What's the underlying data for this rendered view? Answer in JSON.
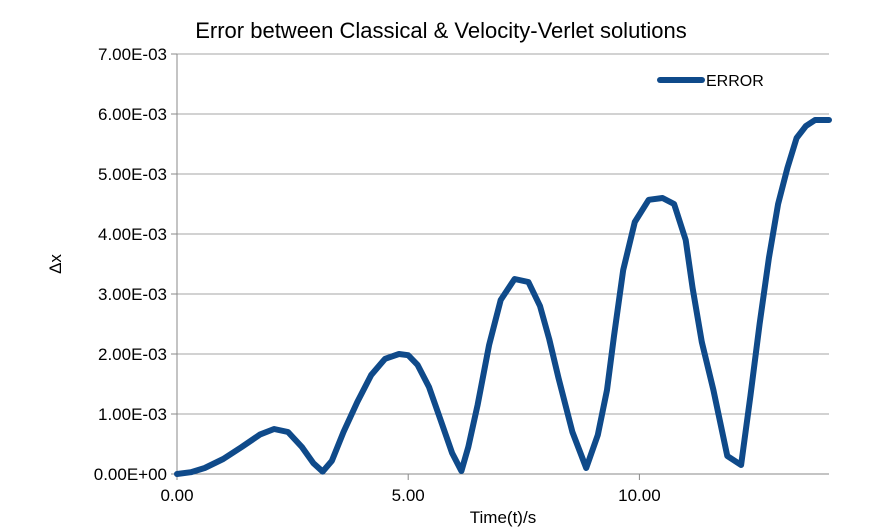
{
  "chart_data": {
    "type": "line",
    "title": "Error between Classical & Velocity-Verlet solutions",
    "xlabel": "Time(t)/s",
    "ylabel": "Δx",
    "xlim": [
      0,
      14.1
    ],
    "ylim": [
      0,
      0.007
    ],
    "x_ticks": [
      0,
      5,
      10
    ],
    "x_tick_labels": [
      "0.00",
      "5.00",
      "10.00"
    ],
    "y_ticks": [
      0,
      0.001,
      0.002,
      0.003,
      0.004,
      0.005,
      0.006,
      0.007
    ],
    "y_tick_labels": [
      "0.00E+00",
      "1.00E-03",
      "2.00E-03",
      "3.00E-03",
      "4.00E-03",
      "5.00E-03",
      "6.00E-03",
      "7.00E-03"
    ],
    "grid": "horizontal",
    "legend_position": "top-right",
    "series": [
      {
        "name": "ERROR",
        "color": "#0f4a8a",
        "x": [
          0,
          0.3,
          0.6,
          1.0,
          1.4,
          1.8,
          2.1,
          2.4,
          2.7,
          2.95,
          3.15,
          3.35,
          3.6,
          3.9,
          4.2,
          4.5,
          4.8,
          5.0,
          5.2,
          5.45,
          5.7,
          5.95,
          6.15,
          6.3,
          6.5,
          6.75,
          7.0,
          7.3,
          7.6,
          7.85,
          8.05,
          8.25,
          8.55,
          8.85,
          9.1,
          9.3,
          9.45,
          9.65,
          9.9,
          10.2,
          10.5,
          10.75,
          11.0,
          11.15,
          11.35,
          11.6,
          11.9,
          12.2,
          12.4,
          12.6,
          12.8,
          13.0,
          13.2,
          13.4,
          13.6,
          13.8,
          14.0,
          14.1
        ],
        "y": [
          0.0,
          3e-05,
          0.0001,
          0.00025,
          0.00045,
          0.00066,
          0.00075,
          0.0007,
          0.00045,
          0.00018,
          4e-05,
          0.00022,
          0.0007,
          0.0012,
          0.00165,
          0.00192,
          0.002,
          0.00198,
          0.00182,
          0.00145,
          0.0009,
          0.00035,
          5e-05,
          0.00045,
          0.00115,
          0.00215,
          0.0029,
          0.00325,
          0.0032,
          0.0028,
          0.00225,
          0.0016,
          0.0007,
          0.0001,
          0.00065,
          0.0014,
          0.0023,
          0.0034,
          0.0042,
          0.00457,
          0.0046,
          0.0045,
          0.0039,
          0.0031,
          0.0022,
          0.0014,
          0.0003,
          0.00015,
          0.0013,
          0.0025,
          0.0036,
          0.0045,
          0.0051,
          0.0056,
          0.0058,
          0.0059,
          0.0059,
          0.0059
        ]
      }
    ]
  }
}
